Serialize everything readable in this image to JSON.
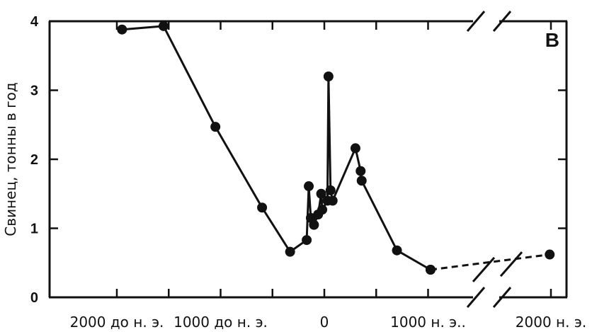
{
  "chart_data": {
    "type": "line",
    "panel_label": "B",
    "ylabel": "Свинец, тонны в год",
    "ylim": [
      0,
      4
    ],
    "yticks": [
      "0",
      "1",
      "2",
      "3",
      "4"
    ],
    "xticks": [
      {
        "value": -2000,
        "label": "2000 до н. э."
      },
      {
        "value": -1000,
        "label": "1000 до н. э."
      },
      {
        "value": 0,
        "label": "0"
      },
      {
        "value": 1000,
        "label": "1000 н. э.."
      },
      {
        "value": 2000,
        "label": "2000 н. э."
      }
    ],
    "axis_break": "between 1000 and 2000 (x axis broken)",
    "series": [
      {
        "style": "solid",
        "points": [
          {
            "x": -1950,
            "y": 3.88
          },
          {
            "x": -1550,
            "y": 3.93
          },
          {
            "x": -1050,
            "y": 2.47
          },
          {
            "x": -600,
            "y": 1.3
          },
          {
            "x": -330,
            "y": 0.66
          },
          {
            "x": -170,
            "y": 0.83
          },
          {
            "x": -150,
            "y": 1.61
          },
          {
            "x": -130,
            "y": 1.15
          },
          {
            "x": -100,
            "y": 1.05
          },
          {
            "x": -60,
            "y": 1.2
          },
          {
            "x": -30,
            "y": 1.5
          },
          {
            "x": -20,
            "y": 1.27
          },
          {
            "x": 30,
            "y": 1.4
          },
          {
            "x": 40,
            "y": 3.2
          },
          {
            "x": 60,
            "y": 1.55
          },
          {
            "x": 80,
            "y": 1.4
          },
          {
            "x": 300,
            "y": 2.16
          },
          {
            "x": 350,
            "y": 1.83
          },
          {
            "x": 360,
            "y": 1.69
          },
          {
            "x": 700,
            "y": 0.68
          },
          {
            "x": 1020,
            "y": 0.4
          }
        ]
      },
      {
        "style": "dashed",
        "points": [
          {
            "x": 1020,
            "y": 0.4
          },
          {
            "x": 1990,
            "y": 0.62
          }
        ]
      }
    ]
  }
}
